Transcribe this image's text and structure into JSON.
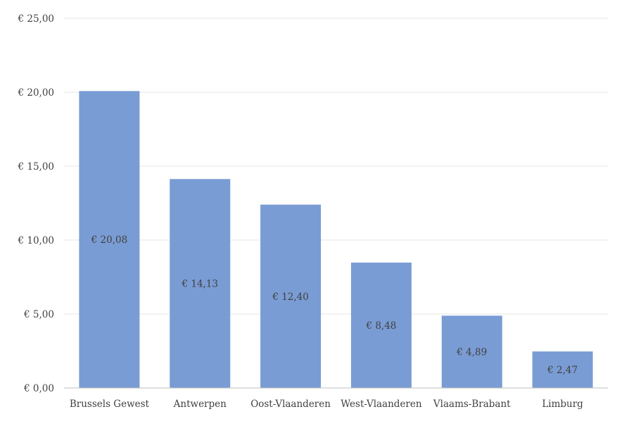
{
  "chart_data": {
    "type": "bar",
    "categories": [
      "Brussels Gewest",
      "Antwerpen",
      "Oost-Vlaanderen",
      "West-Vlaanderen",
      "Vlaams-Brabant",
      "Limburg"
    ],
    "values": [
      20.08,
      14.13,
      12.4,
      8.48,
      4.89,
      2.47
    ],
    "data_labels": [
      "€ 20,08",
      "€ 14,13",
      "€ 12,40",
      "€ 8,48",
      "€ 4,89",
      "€ 2,47"
    ],
    "y_ticks": [
      0,
      5,
      10,
      15,
      20,
      25
    ],
    "y_tick_labels": [
      "€ 0,00",
      "€ 5,00",
      "€ 10,00",
      "€ 15,00",
      "€ 20,00",
      "€ 25,00"
    ],
    "ylim": [
      0,
      25
    ],
    "grid": true,
    "legend": "none",
    "colors": {
      "bar": "#7a9cd4",
      "grid": "#e6e6e6",
      "axis": "#bfbfbf",
      "text": "#404040"
    }
  }
}
